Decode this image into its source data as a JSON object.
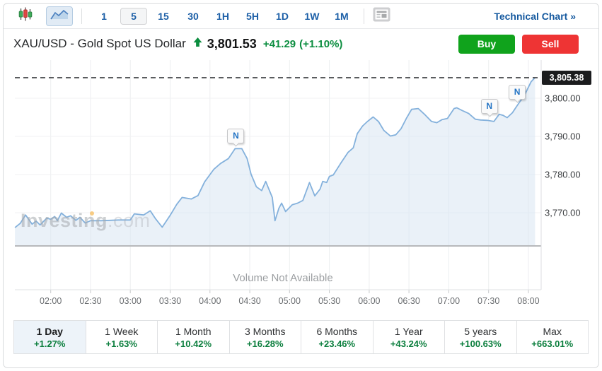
{
  "toolbar": {
    "chart_type_buttons": [
      {
        "name": "candlestick-chart",
        "selected": false
      },
      {
        "name": "area-chart",
        "selected": true
      }
    ],
    "intervals": [
      {
        "label": "1",
        "selected": false
      },
      {
        "label": "5",
        "selected": true
      },
      {
        "label": "15",
        "selected": false
      },
      {
        "label": "30",
        "selected": false
      },
      {
        "label": "1H",
        "selected": false
      },
      {
        "label": "5H",
        "selected": false
      },
      {
        "label": "1D",
        "selected": false
      },
      {
        "label": "1W",
        "selected": false
      },
      {
        "label": "1M",
        "selected": false
      }
    ],
    "news_button": "news-layout",
    "technical_chart_label": "Technical Chart »"
  },
  "header": {
    "instrument": "XAU/USD - Gold Spot US Dollar",
    "direction": "up",
    "price": "3,801.53",
    "change": "+41.29",
    "change_percent": "(+1.10%)",
    "buy_label": "Buy",
    "sell_label": "Sell"
  },
  "chart_data": {
    "type": "area",
    "title": "XAU/USD 5-minute intraday price",
    "xlabel": "",
    "ylabel": "",
    "x_ticks": [
      "02:00",
      "02:30",
      "03:00",
      "03:30",
      "04:00",
      "04:30",
      "05:00",
      "05:30",
      "06:00",
      "06:30",
      "07:00",
      "07:30",
      "08:00"
    ],
    "y_ticks": [
      {
        "label": "3,800.00",
        "value": 3800
      },
      {
        "label": "3,790.00",
        "value": 3790
      },
      {
        "label": "3,780.00",
        "value": 3780
      },
      {
        "label": "3,770.00",
        "value": 3770
      }
    ],
    "ylim": [
      3761,
      3810
    ],
    "grid": true,
    "last_price": 3805.38,
    "last_price_label": "3,805.38",
    "series": [
      {
        "name": "XAU/USD",
        "points": [
          [
            -27,
            3766.1
          ],
          [
            -23,
            3767.2
          ],
          [
            -19,
            3769.4
          ],
          [
            -14,
            3767.0
          ],
          [
            -11,
            3767.8
          ],
          [
            -8,
            3766.8
          ],
          [
            -3,
            3768.6
          ],
          [
            0,
            3768.3
          ],
          [
            3,
            3769.0
          ],
          [
            5,
            3767.9
          ],
          [
            8,
            3769.9
          ],
          [
            12,
            3768.8
          ],
          [
            15,
            3769.2
          ],
          [
            19,
            3768.0
          ],
          [
            22,
            3768.8
          ],
          [
            26,
            3767.3
          ],
          [
            30,
            3767.9
          ],
          [
            38,
            3767.9
          ],
          [
            45,
            3768.0
          ],
          [
            51,
            3768.1
          ],
          [
            60,
            3768.1
          ],
          [
            63,
            3769.7
          ],
          [
            70,
            3769.4
          ],
          [
            75,
            3770.5
          ],
          [
            79,
            3768.4
          ],
          [
            84,
            3766.2
          ],
          [
            90,
            3769.3
          ],
          [
            95,
            3772.2
          ],
          [
            99,
            3774.0
          ],
          [
            106,
            3773.6
          ],
          [
            111,
            3774.5
          ],
          [
            116,
            3778.1
          ],
          [
            123,
            3781.4
          ],
          [
            128,
            3782.9
          ],
          [
            134,
            3784.2
          ],
          [
            139,
            3786.8
          ],
          [
            144,
            3786.8
          ],
          [
            148,
            3784.2
          ],
          [
            151,
            3780.1
          ],
          [
            155,
            3776.8
          ],
          [
            159,
            3775.8
          ],
          [
            162,
            3778.2
          ],
          [
            167,
            3774.0
          ],
          [
            169,
            3767.9
          ],
          [
            172,
            3771.2
          ],
          [
            174,
            3772.5
          ],
          [
            177,
            3770.3
          ],
          [
            182,
            3772.1
          ],
          [
            186,
            3772.5
          ],
          [
            190,
            3773.2
          ],
          [
            195,
            3777.9
          ],
          [
            199,
            3774.4
          ],
          [
            203,
            3776.2
          ],
          [
            205,
            3778.2
          ],
          [
            208,
            3777.9
          ],
          [
            210,
            3779.5
          ],
          [
            213,
            3779.9
          ],
          [
            219,
            3783.2
          ],
          [
            224,
            3785.8
          ],
          [
            228,
            3787.0
          ],
          [
            231,
            3790.7
          ],
          [
            235,
            3792.7
          ],
          [
            239,
            3794.0
          ],
          [
            243,
            3795.1
          ],
          [
            247,
            3793.9
          ],
          [
            251,
            3791.6
          ],
          [
            256,
            3790.1
          ],
          [
            260,
            3790.4
          ],
          [
            264,
            3792.0
          ],
          [
            268,
            3794.7
          ],
          [
            272,
            3797.1
          ],
          [
            277,
            3797.3
          ],
          [
            282,
            3795.7
          ],
          [
            287,
            3793.9
          ],
          [
            291,
            3793.6
          ],
          [
            295,
            3794.4
          ],
          [
            299,
            3794.7
          ],
          [
            304,
            3797.3
          ],
          [
            306,
            3797.5
          ],
          [
            310,
            3796.8
          ],
          [
            315,
            3796.0
          ],
          [
            320,
            3794.5
          ],
          [
            324,
            3794.3
          ],
          [
            329,
            3794.2
          ],
          [
            334,
            3793.9
          ],
          [
            338,
            3795.8
          ],
          [
            341,
            3795.5
          ],
          [
            344,
            3794.9
          ],
          [
            348,
            3796.2
          ],
          [
            351,
            3797.8
          ],
          [
            354,
            3799.3
          ],
          [
            357,
            3800.7
          ],
          [
            360,
            3802.9
          ],
          [
            362,
            3804.3
          ],
          [
            365,
            3805.4
          ]
        ]
      }
    ],
    "news_markers": [
      {
        "label": "N",
        "t": 139,
        "price": 3786.8
      },
      {
        "label": "N",
        "t": 330,
        "price": 3794.6
      },
      {
        "label": "N",
        "t": 351,
        "price": 3798.4
      }
    ],
    "volume_note": "Volume Not Available",
    "watermark": {
      "main": "Investing",
      "suffix": ".com"
    },
    "colors": {
      "line": "#84b1dc",
      "fill": "#d8e5f2",
      "dashed_line": "#3f4144",
      "last_price_bg": "#1b1c1e",
      "up_green": "#0b8d3f",
      "buy_green": "#10a31c",
      "sell_red": "#ee3434",
      "accent_blue": "#1c5fa7"
    }
  },
  "periods": [
    {
      "label": "1 Day",
      "change": "+1.27%",
      "selected": true
    },
    {
      "label": "1 Week",
      "change": "+1.63%",
      "selected": false
    },
    {
      "label": "1 Month",
      "change": "+10.42%",
      "selected": false
    },
    {
      "label": "3 Months",
      "change": "+16.28%",
      "selected": false
    },
    {
      "label": "6 Months",
      "change": "+23.46%",
      "selected": false
    },
    {
      "label": "1 Year",
      "change": "+43.24%",
      "selected": false
    },
    {
      "label": "5 years",
      "change": "+100.63%",
      "selected": false
    },
    {
      "label": "Max",
      "change": "+663.01%",
      "selected": false
    }
  ]
}
